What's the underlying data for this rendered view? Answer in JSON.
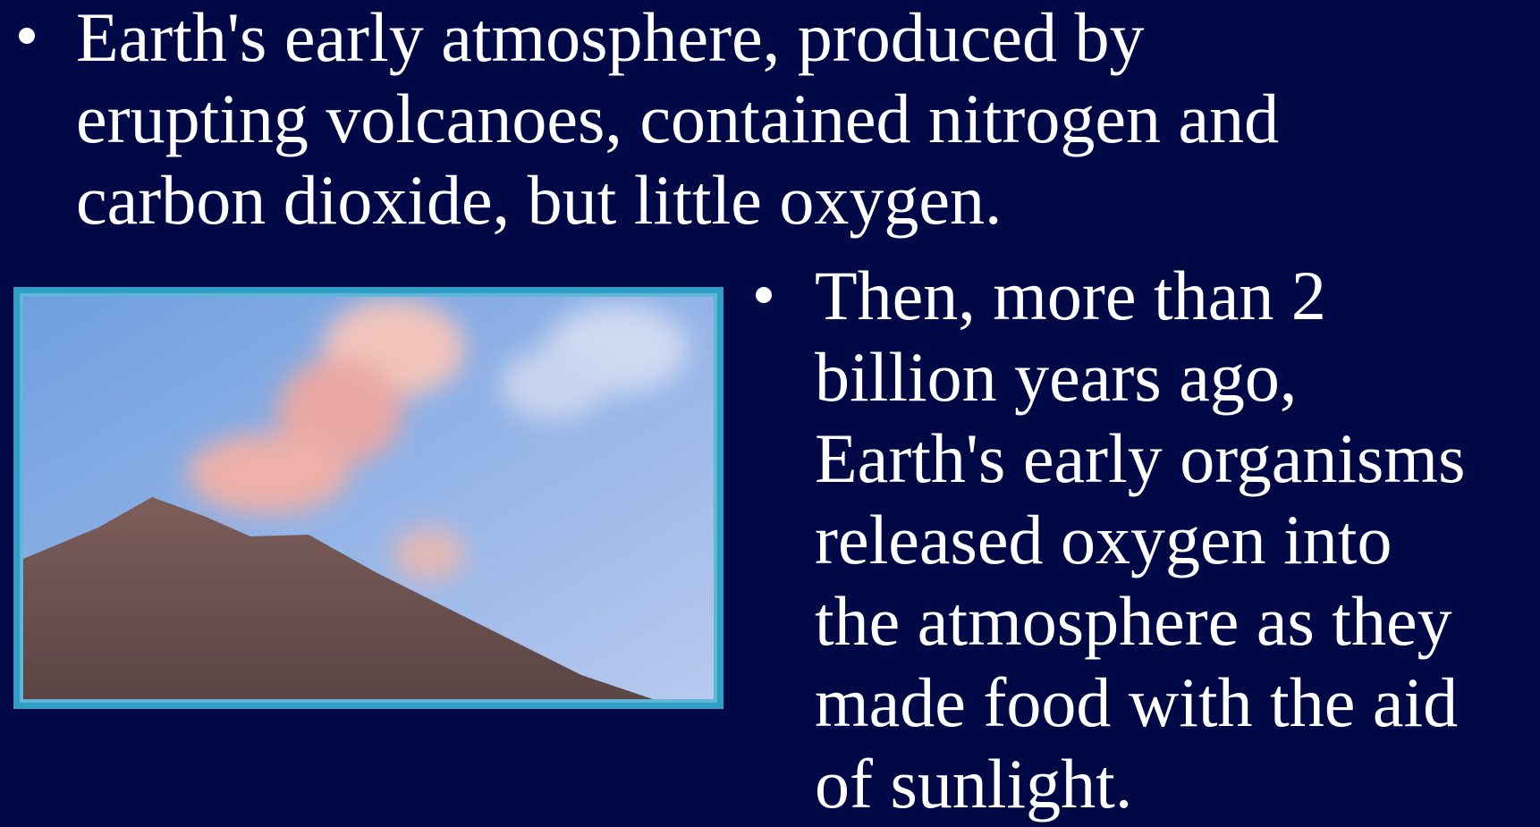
{
  "bullets": [
    {
      "lines": [
        "Earth's early atmosphere, produced by",
        "erupting volcanoes, contained nitrogen and",
        "carbon dioxide, but little oxygen."
      ]
    },
    {
      "lines": [
        "Then, more than 2",
        "billion years ago,",
        "Earth's early organisms",
        "released oxygen into",
        "the atmosphere as they",
        "made food with the aid",
        "of sunlight."
      ]
    }
  ]
}
